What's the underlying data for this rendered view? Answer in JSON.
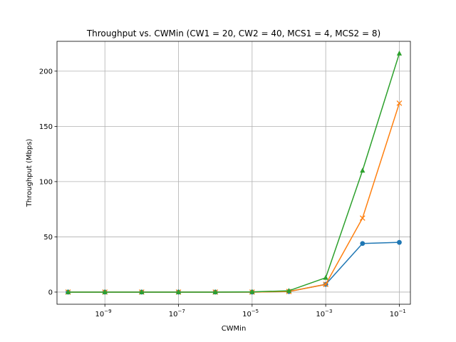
{
  "chart_data": {
    "type": "line",
    "title": "Throughput vs. CWMin (CW1 = 20, CW2 = 40, MCS1 = 4, MCS2 = 8)",
    "xlabel": "CWMin",
    "ylabel": "Throughput (Mbps)",
    "xscale": "log",
    "xlim": [
      5e-11,
      0.2
    ],
    "ylim": [
      -11,
      227
    ],
    "grid": true,
    "x": [
      1e-10,
      1e-09,
      1e-08,
      1e-07,
      1e-06,
      1e-05,
      0.0001,
      0.001,
      0.01,
      0.1
    ],
    "xticks": [
      {
        "value": 1e-09,
        "base": "10",
        "exp": "−9"
      },
      {
        "value": 1e-07,
        "base": "10",
        "exp": "−7"
      },
      {
        "value": 1e-05,
        "base": "10",
        "exp": "−5"
      },
      {
        "value": 0.001,
        "base": "10",
        "exp": "−3"
      },
      {
        "value": 0.1,
        "base": "10",
        "exp": "−1"
      }
    ],
    "yticks": [
      0,
      50,
      100,
      150,
      200
    ],
    "series": [
      {
        "color": "#1f77b4",
        "marker": "circle",
        "values": [
          0,
          0,
          0,
          0,
          0,
          0,
          0.5,
          7,
          44,
          45
        ]
      },
      {
        "color": "#ff7f0e",
        "marker": "x",
        "values": [
          0,
          0,
          0,
          0,
          0,
          0,
          0.5,
          7,
          67,
          171
        ]
      },
      {
        "color": "#2ca02c",
        "marker": "triangle",
        "values": [
          0,
          0,
          0,
          0,
          0,
          0.2,
          1.2,
          13,
          110,
          216
        ]
      }
    ]
  }
}
